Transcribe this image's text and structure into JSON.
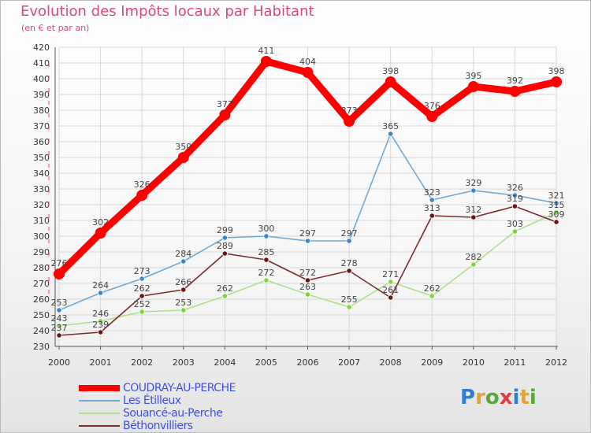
{
  "header": {
    "title": "Evolution des Impôts locaux par Habitant",
    "subtitle": "(en € et par an)"
  },
  "logo": {
    "text": "Proxiti"
  },
  "chart_data": {
    "type": "line",
    "title": "Evolution des Impôts locaux par Habitant",
    "subtitle": "(en € et par an)",
    "xlabel": "",
    "ylabel": "",
    "x": [
      "2000",
      "2001",
      "2002",
      "2003",
      "2004",
      "2005",
      "2006",
      "2007",
      "2008",
      "2009",
      "2010",
      "2011",
      "2012"
    ],
    "ylim": [
      230,
      420
    ],
    "yticks": [
      230,
      240,
      250,
      260,
      270,
      280,
      290,
      300,
      310,
      320,
      330,
      340,
      350,
      360,
      370,
      380,
      390,
      400,
      410,
      420
    ],
    "grid": true,
    "legend_position": "bottom-left",
    "series": [
      {
        "name": "COUDRAY-AU-PERCHE",
        "color": "#ff0000",
        "marker_color": "#ff0000",
        "emphasis": true,
        "values": [
          276,
          302,
          326,
          350,
          377,
          411,
          404,
          373,
          398,
          376,
          395,
          392,
          398
        ]
      },
      {
        "name": "Les Étilleux",
        "color": "#6fa8d4",
        "marker_color": "#3a86c6",
        "emphasis": false,
        "values": [
          253,
          264,
          273,
          284,
          299,
          300,
          297,
          297,
          365,
          323,
          329,
          326,
          321
        ]
      },
      {
        "name": "Souancé-au-Perche",
        "color": "#aee08c",
        "marker_color": "#7fd43a",
        "emphasis": false,
        "values": [
          243,
          246,
          252,
          253,
          262,
          272,
          263,
          255,
          271,
          262,
          282,
          303,
          315
        ]
      },
      {
        "name": "Béthonvilliers",
        "color": "#7a2a2a",
        "marker_color": "#6b1515",
        "emphasis": false,
        "values": [
          237,
          239,
          262,
          266,
          289,
          285,
          272,
          278,
          261,
          313,
          312,
          319,
          309
        ]
      }
    ]
  }
}
